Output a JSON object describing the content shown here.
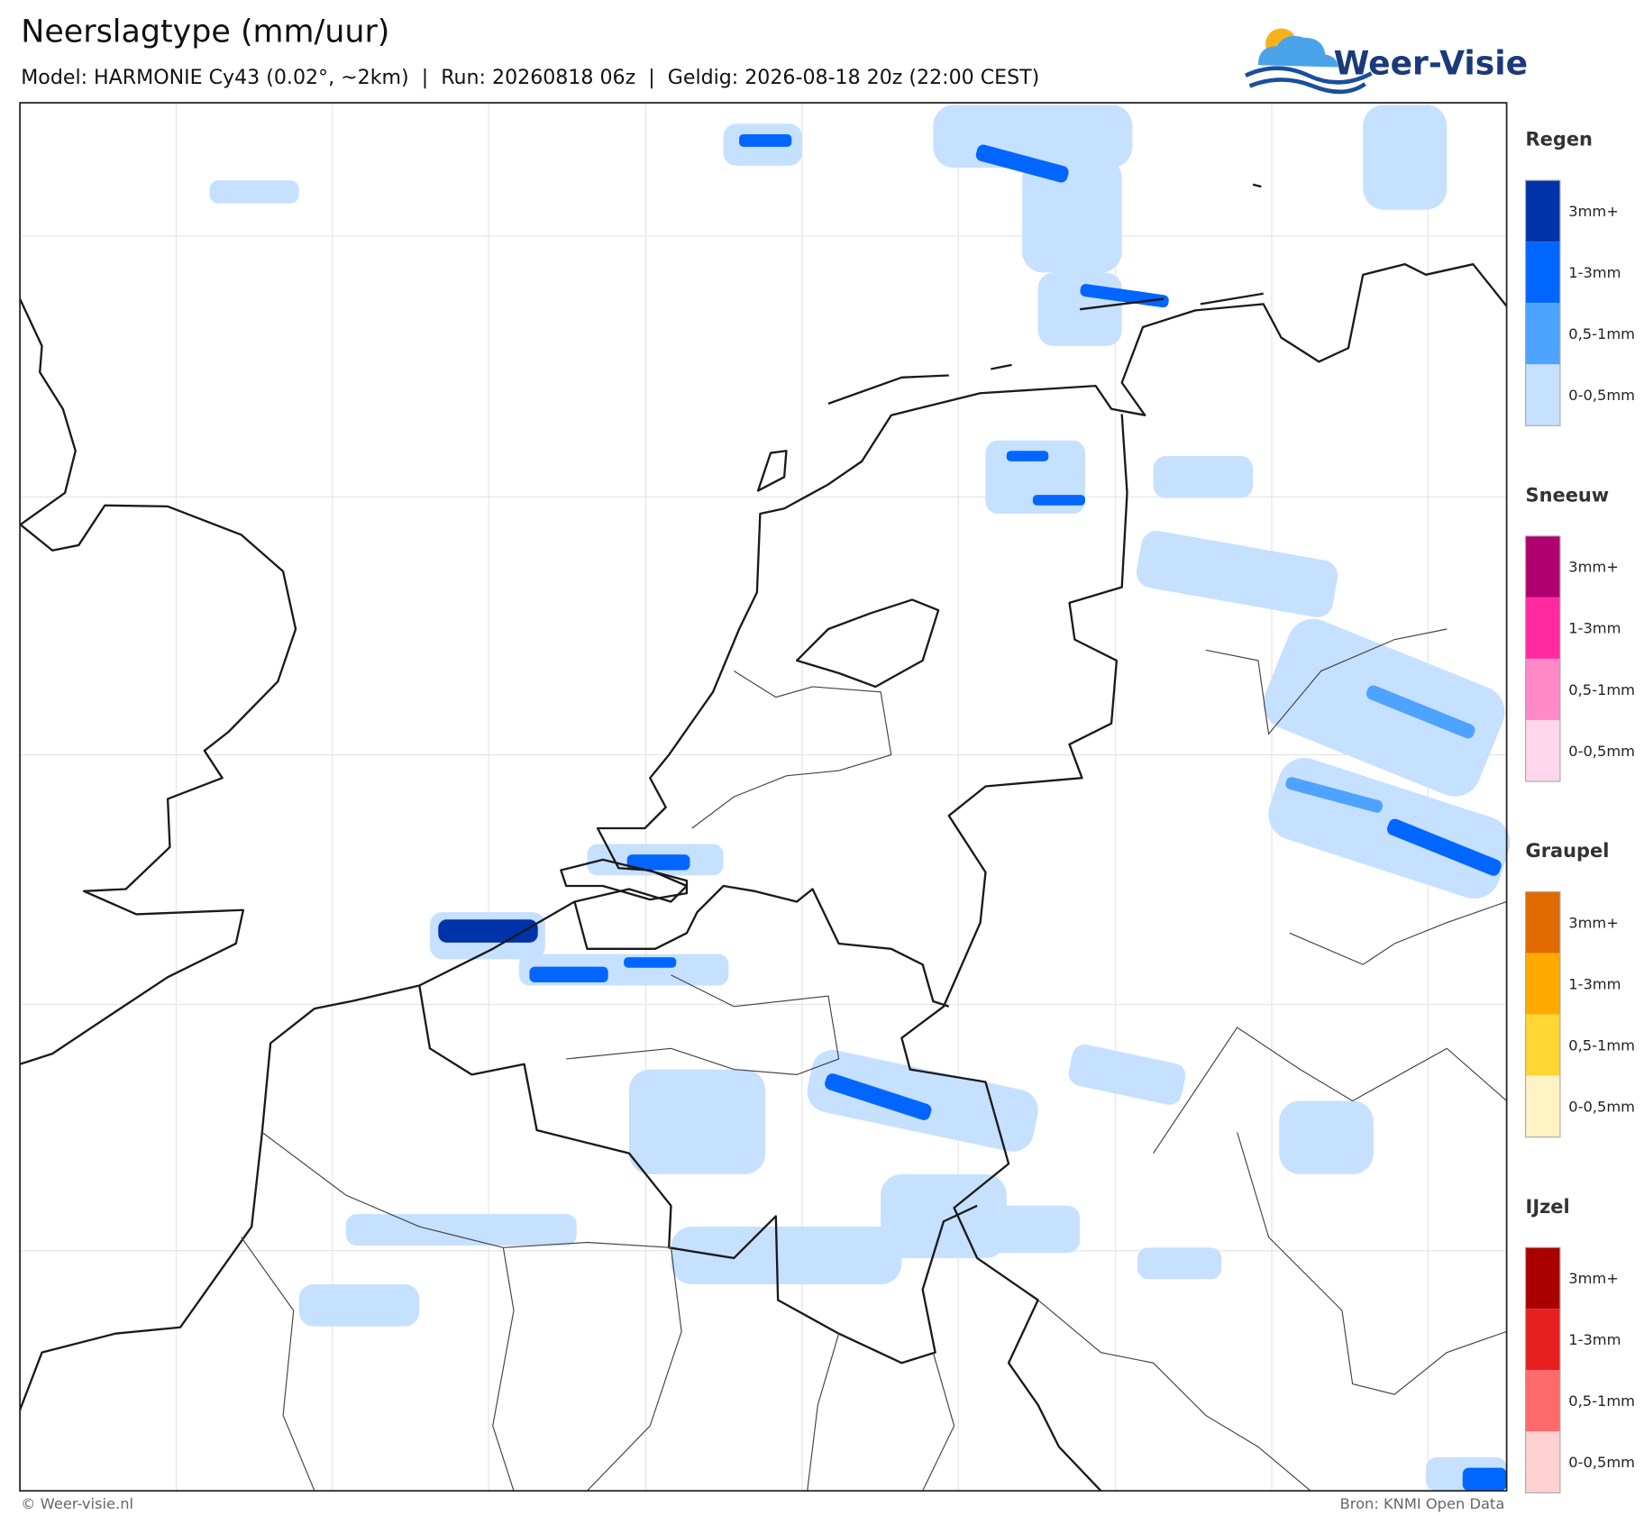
{
  "header": {
    "title": "Neerslagtype (mm/uur)",
    "subtitle": "Model: HARMONIE Cy43 (0.02°, ~2km)  |  Run: 20260818 06z  |  Geldig: 2026-08-18 20z (22:00 CEST)",
    "logo": "Weer-Visie"
  },
  "legend": [
    {
      "name": "Regen",
      "items": [
        {
          "label": "3mm+",
          "color": "#0033aa"
        },
        {
          "label": "1-3mm",
          "color": "#0066ff"
        },
        {
          "label": "0,5-1mm",
          "color": "#4da3ff"
        },
        {
          "label": "0-0,5mm",
          "color": "#c6e0ff"
        }
      ]
    },
    {
      "name": "Sneeuw",
      "items": [
        {
          "label": "3mm+",
          "color": "#b0006f"
        },
        {
          "label": "1-3mm",
          "color": "#ff2a9f"
        },
        {
          "label": "0,5-1mm",
          "color": "#ff88c8"
        },
        {
          "label": "0-0,5mm",
          "color": "#ffd6ec"
        }
      ]
    },
    {
      "name": "Graupel",
      "items": [
        {
          "label": "3mm+",
          "color": "#e06a00"
        },
        {
          "label": "1-3mm",
          "color": "#ffaa00"
        },
        {
          "label": "0,5-1mm",
          "color": "#ffd633"
        },
        {
          "label": "0-0,5mm",
          "color": "#fff3c4"
        }
      ]
    },
    {
      "name": "IJzel",
      "items": [
        {
          "label": "3mm+",
          "color": "#aa0000"
        },
        {
          "label": "1-3mm",
          "color": "#e62020"
        },
        {
          "label": "0,5-1mm",
          "color": "#ff6a6a"
        },
        {
          "label": "0-0,5mm",
          "color": "#ffd0d0"
        }
      ]
    }
  ],
  "footer": {
    "copyright": "© Weer-visie.nl",
    "source": "Bron: KNMI Open Data"
  }
}
